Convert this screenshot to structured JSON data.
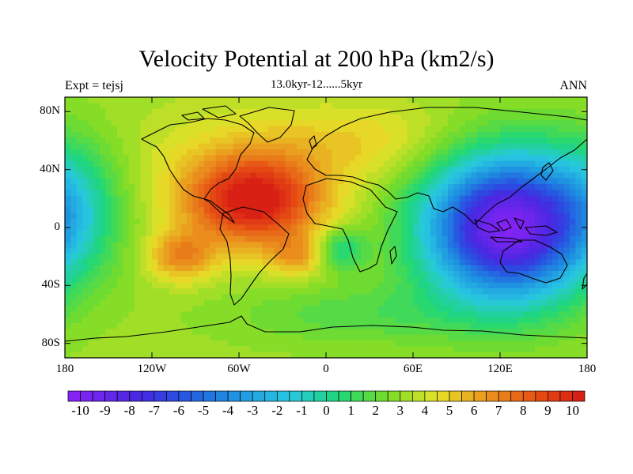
{
  "chart_data": {
    "type": "heatmap",
    "title": "Velocity Potential at 200 hPa (km2/s)",
    "subtitle": "13.0kyr-12......5kyr",
    "left_string": "Expt = tejsj",
    "right_string": "ANN",
    "x_ticks": [
      {
        "lon": -180,
        "label": "180"
      },
      {
        "lon": -120,
        "label": "120W"
      },
      {
        "lon": -60,
        "label": "60W"
      },
      {
        "lon": 0,
        "label": "0"
      },
      {
        "lon": 60,
        "label": "60E"
      },
      {
        "lon": 120,
        "label": "120E"
      },
      {
        "lon": 180,
        "label": "180"
      }
    ],
    "y_ticks": [
      {
        "lat": 80,
        "label": "80N"
      },
      {
        "lat": 40,
        "label": "40N"
      },
      {
        "lat": 0,
        "label": "0"
      },
      {
        "lat": -40,
        "label": "40S"
      },
      {
        "lat": -80,
        "label": "80S"
      }
    ],
    "xlim": [
      -180,
      180
    ],
    "ylim": [
      -90,
      90
    ],
    "colorbar": {
      "min": -10.5,
      "max": 10.5,
      "step": 0.5,
      "labels": [
        "-10",
        "-9",
        "-8",
        "-7",
        "-6",
        "-5",
        "-4",
        "-3",
        "-2",
        "-1",
        "0",
        "1",
        "2",
        "3",
        "4",
        "5",
        "6",
        "7",
        "8",
        "9",
        "10"
      ],
      "label_values": [
        -10,
        -9,
        -8,
        -7,
        -6,
        -5,
        -4,
        -3,
        -2,
        -1,
        0,
        1,
        2,
        3,
        4,
        5,
        6,
        7,
        8,
        9,
        10
      ]
    },
    "field_centers": [
      {
        "name": "Atlantic maximum",
        "lon": -50,
        "lat": 18,
        "value": 10
      },
      {
        "name": "South Pacific maximum",
        "lon": -100,
        "lat": -20,
        "value": 8
      },
      {
        "name": "South Atlantic maximum",
        "lon": -20,
        "lat": -20,
        "value": 7
      },
      {
        "name": "Indo-Pacific minimum",
        "lon": 125,
        "lat": 0,
        "value": -10
      }
    ]
  }
}
